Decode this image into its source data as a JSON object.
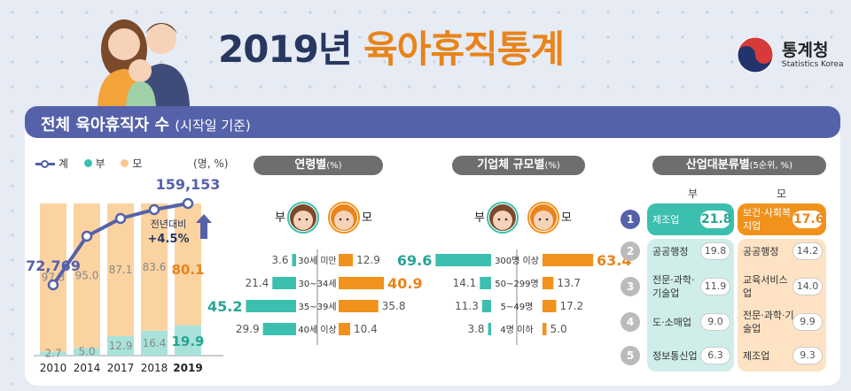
{
  "header": {
    "year": "2019년",
    "title": "육아휴직통계",
    "logo_text": "통계청",
    "logo_sub": "Statistics Korea"
  },
  "band": {
    "title": "전체 육아휴직자 수",
    "subtitle": "(시작일 기준)"
  },
  "colors": {
    "navy": "#27375f",
    "orange": "#f0921c",
    "teal": "#3cbfae",
    "line": "#5561a9",
    "peach": "#fbd3a1",
    "mint": "#a9e2da"
  },
  "chart_data": [
    {
      "type": "bar",
      "title": "",
      "unit": "(명, %)",
      "legend": [
        "계",
        "부",
        "모"
      ],
      "categories": [
        "2010",
        "2014",
        "2017",
        "2018",
        "2019"
      ],
      "series": [
        {
          "name": "부",
          "values": [
            2.7,
            5.0,
            12.9,
            16.4,
            19.9
          ]
        },
        {
          "name": "모",
          "values": [
            97.3,
            95.0,
            87.1,
            83.6,
            80.1
          ]
        }
      ],
      "totals": {
        "labels": [
          "72,769",
          "",
          "",
          "",
          "159,153"
        ],
        "values": [
          72769,
          null,
          null,
          null,
          159153
        ]
      },
      "annotation": {
        "line1": "전년대비",
        "line2": "+4.5%"
      }
    },
    {
      "type": "bar",
      "title": "연령별",
      "title_unit": "(%)",
      "categories": [
        "30세 미만",
        "30~34세",
        "35~39세",
        "40세 이상"
      ],
      "series": [
        {
          "name": "부",
          "values": [
            3.6,
            21.4,
            45.2,
            29.9
          ]
        },
        {
          "name": "모",
          "values": [
            12.9,
            40.9,
            35.8,
            10.4
          ]
        }
      ],
      "labels": {
        "father": "부",
        "mother": "모"
      }
    },
    {
      "type": "bar",
      "title": "기업체 규모별",
      "title_unit": "(%)",
      "categories": [
        "300명 이상",
        "50~299명",
        "5~49명",
        "4명 이하"
      ],
      "series": [
        {
          "name": "부",
          "values": [
            69.6,
            14.1,
            11.3,
            3.8
          ]
        },
        {
          "name": "모",
          "values": [
            63.4,
            13.7,
            17.2,
            5.0
          ]
        }
      ],
      "labels": {
        "father": "부",
        "mother": "모"
      }
    },
    {
      "type": "table",
      "title": "산업대분류별",
      "title_unit": "(5순위, %)",
      "columns": [
        "부",
        "모"
      ],
      "ranks": [
        "1",
        "2",
        "3",
        "4",
        "5"
      ],
      "father": [
        {
          "name": "제조업",
          "value": "21.8"
        },
        {
          "name": "공공행정",
          "value": "19.8"
        },
        {
          "name": "전문·과학·기술업",
          "value": "11.9"
        },
        {
          "name": "도·소매업",
          "value": "9.0"
        },
        {
          "name": "정보통신업",
          "value": "6.3"
        }
      ],
      "mother": [
        {
          "name": "보건·사회복지업",
          "value": "17.6"
        },
        {
          "name": "공공행정",
          "value": "14.2"
        },
        {
          "name": "교육서비스업",
          "value": "14.0"
        },
        {
          "name": "전문·과학·기술업",
          "value": "9.9"
        },
        {
          "name": "제조업",
          "value": "9.3"
        }
      ]
    }
  ]
}
